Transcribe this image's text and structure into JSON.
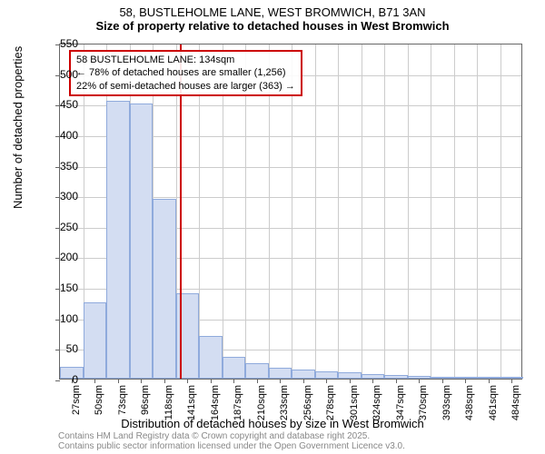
{
  "title": "58, BUSTLEHOLME LANE, WEST BROMWICH, B71 3AN",
  "subtitle": "Size of property relative to detached houses in West Bromwich",
  "ylabel": "Number of detached properties",
  "xlabel": "Distribution of detached houses by size in West Bromwich",
  "footer1": "Contains HM Land Registry data © Crown copyright and database right 2025.",
  "footer2": "Contains public sector information licensed under the Open Government Licence v3.0.",
  "chart": {
    "type": "histogram",
    "ylim": [
      0,
      550
    ],
    "ytick_step": 50,
    "yticks": [
      0,
      50,
      100,
      150,
      200,
      250,
      300,
      350,
      400,
      450,
      500,
      550
    ],
    "xtick_labels": [
      "27sqm",
      "50sqm",
      "73sqm",
      "96sqm",
      "118sqm",
      "141sqm",
      "164sqm",
      "187sqm",
      "210sqm",
      "233sqm",
      "256sqm",
      "278sqm",
      "301sqm",
      "324sqm",
      "347sqm",
      "370sqm",
      "393sqm",
      "438sqm",
      "461sqm",
      "484sqm"
    ],
    "bar_values": [
      20,
      125,
      455,
      450,
      295,
      140,
      70,
      35,
      25,
      18,
      15,
      12,
      10,
      8,
      6,
      5,
      3,
      2,
      2,
      2
    ],
    "bar_fill": "#d3ddf2",
    "bar_border": "#8faadc",
    "grid_color": "#cccccc",
    "border_color": "#666666",
    "background_color": "#ffffff",
    "marker_value": 134,
    "marker_color": "#cc0000",
    "annotation": {
      "line1": "58 BUSTLEHOLME LANE: 134sqm",
      "line2": "← 78% of detached houses are smaller (1,256)",
      "line3": "22% of semi-detached houses are larger (363) →"
    }
  }
}
